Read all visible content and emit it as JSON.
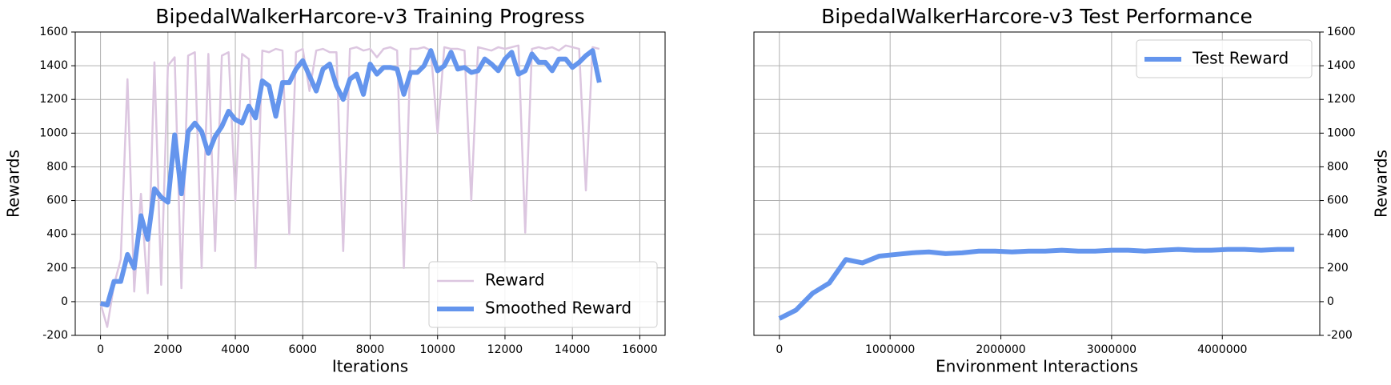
{
  "chart_data": [
    {
      "type": "line",
      "title": "BipedalWalkerHarcore-v3 Training Progress",
      "xlabel": "Iterations",
      "ylabel": "Rewards",
      "x": [
        0,
        200,
        400,
        600,
        800,
        1000,
        1200,
        1400,
        1600,
        1800,
        2000,
        2200,
        2400,
        2600,
        2800,
        3000,
        3200,
        3400,
        3600,
        3800,
        4000,
        4200,
        4400,
        4600,
        4800,
        5000,
        5200,
        5400,
        5600,
        5800,
        6000,
        6200,
        6400,
        6600,
        6800,
        7000,
        7200,
        7400,
        7600,
        7800,
        8000,
        8200,
        8400,
        8600,
        8800,
        9000,
        9200,
        9400,
        9600,
        9800,
        10000,
        10200,
        10400,
        10600,
        10800,
        11000,
        11200,
        11400,
        11600,
        11800,
        12000,
        12200,
        12400,
        12600,
        12800,
        13000,
        13200,
        13400,
        13600,
        13800,
        14000,
        14200,
        14400,
        14600,
        14800
      ],
      "series": [
        {
          "name": "Reward",
          "color": "#dcc6e0",
          "width": 2.5,
          "values": [
            -10,
            -150,
            100,
            250,
            1320,
            60,
            640,
            50,
            1420,
            100,
            1400,
            1450,
            80,
            1460,
            1480,
            200,
            1470,
            300,
            1460,
            1480,
            600,
            1470,
            1440,
            200,
            1490,
            1480,
            1500,
            1490,
            400,
            1480,
            1500,
            1250,
            1490,
            1500,
            1480,
            1480,
            300,
            1500,
            1510,
            1490,
            1500,
            1450,
            1500,
            1510,
            1490,
            200,
            1500,
            1500,
            1510,
            1490,
            1000,
            1510,
            1500,
            1500,
            1490,
            600,
            1510,
            1500,
            1490,
            1510,
            1500,
            1510,
            1520,
            410,
            1500,
            1510,
            1500,
            1510,
            1490,
            1520,
            1510,
            1500,
            660,
            1510,
            1500
          ]
        },
        {
          "name": "Smoothed Reward",
          "color": "#6495ed",
          "width": 6,
          "values": [
            -10,
            -20,
            120,
            120,
            280,
            200,
            510,
            370,
            670,
            620,
            590,
            990,
            640,
            1010,
            1060,
            1010,
            880,
            980,
            1040,
            1130,
            1080,
            1060,
            1160,
            1090,
            1310,
            1280,
            1100,
            1300,
            1300,
            1380,
            1430,
            1340,
            1250,
            1380,
            1410,
            1280,
            1200,
            1320,
            1350,
            1230,
            1410,
            1350,
            1390,
            1390,
            1380,
            1230,
            1360,
            1360,
            1400,
            1490,
            1370,
            1400,
            1480,
            1380,
            1390,
            1360,
            1370,
            1440,
            1410,
            1370,
            1440,
            1480,
            1350,
            1370,
            1470,
            1420,
            1420,
            1370,
            1440,
            1440,
            1390,
            1420,
            1460,
            1490,
            1300
          ]
        }
      ],
      "xlim": [
        -750,
        16750
      ],
      "ylim": [
        -200,
        1600
      ],
      "xticks": [
        0,
        2000,
        4000,
        6000,
        8000,
        10000,
        12000,
        14000,
        16000
      ],
      "yticks": [
        -200,
        0,
        200,
        400,
        600,
        800,
        1000,
        1200,
        1400,
        1600
      ],
      "grid": true,
      "legend": "lower right",
      "yaxis_side": "left"
    },
    {
      "type": "line",
      "title": "BipedalWalkerHarcore-v3 Test Performance",
      "xlabel": "Environment Interactions",
      "ylabel": "Rewards",
      "x": [
        0,
        150000,
        300000,
        450000,
        600000,
        750000,
        900000,
        1050000,
        1200000,
        1350000,
        1500000,
        1650000,
        1800000,
        1950000,
        2100000,
        2250000,
        2400000,
        2550000,
        2700000,
        2850000,
        3000000,
        3150000,
        3300000,
        3450000,
        3600000,
        3750000,
        3900000,
        4050000,
        4200000,
        4350000,
        4500000,
        4650000
      ],
      "series": [
        {
          "name": "Test Reward",
          "color": "#6495ed",
          "width": 6,
          "values": [
            -100,
            -50,
            50,
            110,
            250,
            230,
            270,
            280,
            290,
            295,
            285,
            290,
            300,
            300,
            295,
            300,
            300,
            305,
            300,
            300,
            305,
            305,
            300,
            305,
            310,
            305,
            305,
            310,
            310,
            305,
            310,
            310
          ]
        }
      ],
      "xlim": [
        -230000,
        4880000
      ],
      "ylim": [
        -200,
        1600
      ],
      "xticks": [
        0,
        1000000,
        2000000,
        3000000,
        4000000
      ],
      "yticks": [
        -200,
        0,
        200,
        400,
        600,
        800,
        1000,
        1200,
        1400,
        1600
      ],
      "grid": true,
      "legend": "upper right",
      "yaxis_side": "right"
    }
  ]
}
